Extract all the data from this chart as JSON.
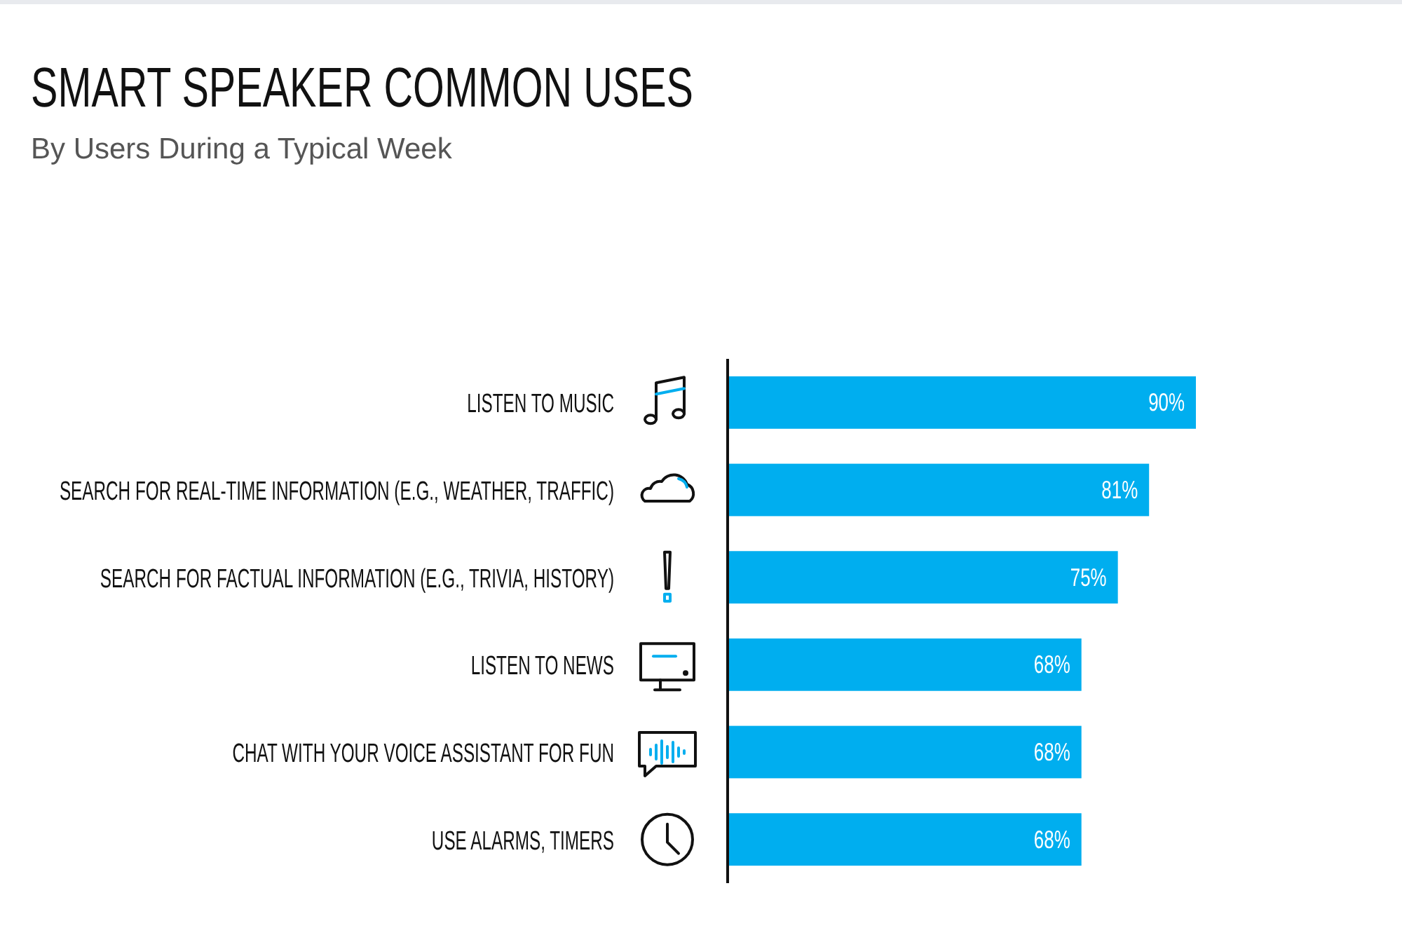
{
  "chart_data": {
    "type": "bar",
    "orientation": "horizontal",
    "title": "SMART SPEAKER COMMON USES",
    "subtitle": "By Users During a Typical Week",
    "categories": [
      "LISTEN TO MUSIC",
      "SEARCH FOR REAL-TIME INFORMATION (E.G., WEATHER, TRAFFIC)",
      "SEARCH FOR FACTUAL INFORMATION (E.G., TRIVIA, HISTORY)",
      "LISTEN TO NEWS",
      "CHAT WITH YOUR VOICE ASSISTANT FOR FUN",
      "USE ALARMS, TIMERS"
    ],
    "values": [
      90,
      81,
      75,
      68,
      68,
      68
    ],
    "value_labels": [
      "90%",
      "81%",
      "75%",
      "68%",
      "68%",
      "68%"
    ],
    "color": "#00aeef"
  }
}
